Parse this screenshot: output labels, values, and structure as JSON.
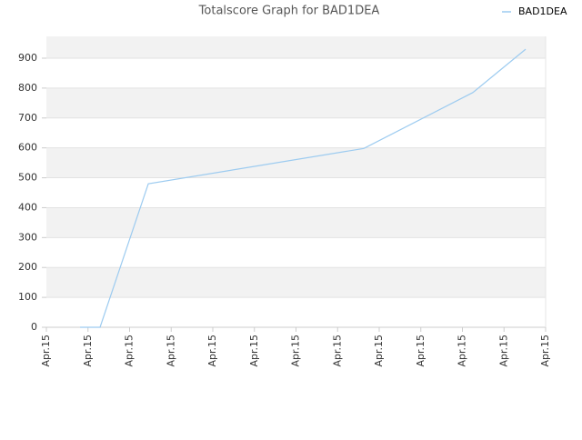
{
  "chart_data": {
    "type": "line",
    "title": "Totalscore Graph for BAD1DEA",
    "x": [
      0.81,
      1.29,
      2.45,
      7.63,
      10.25,
      11.52
    ],
    "series": [
      {
        "name": "BAD1DEA",
        "color": "#9ccbf0",
        "values": [
          0,
          0,
          480,
          598,
          785,
          930
        ]
      }
    ],
    "xlim": [
      0,
      12
    ],
    "xticks": [
      {
        "value": 0,
        "label": "Apr.15"
      },
      {
        "value": 1,
        "label": "Apr.15"
      },
      {
        "value": 2,
        "label": "Apr.15"
      },
      {
        "value": 3,
        "label": "Apr.15"
      },
      {
        "value": 4,
        "label": "Apr.15"
      },
      {
        "value": 5,
        "label": "Apr.15"
      },
      {
        "value": 6,
        "label": "Apr.15"
      },
      {
        "value": 7,
        "label": "Apr.15"
      },
      {
        "value": 8,
        "label": "Apr.15"
      },
      {
        "value": 9,
        "label": "Apr.15"
      },
      {
        "value": 10,
        "label": "Apr.15"
      },
      {
        "value": 11,
        "label": "Apr.15"
      },
      {
        "value": 12,
        "label": "Apr.15"
      }
    ],
    "ylim": [
      0,
      973
    ],
    "yticks": [
      0,
      100,
      200,
      300,
      400,
      500,
      600,
      700,
      800,
      900
    ],
    "grid": true,
    "legend": "top-right"
  }
}
